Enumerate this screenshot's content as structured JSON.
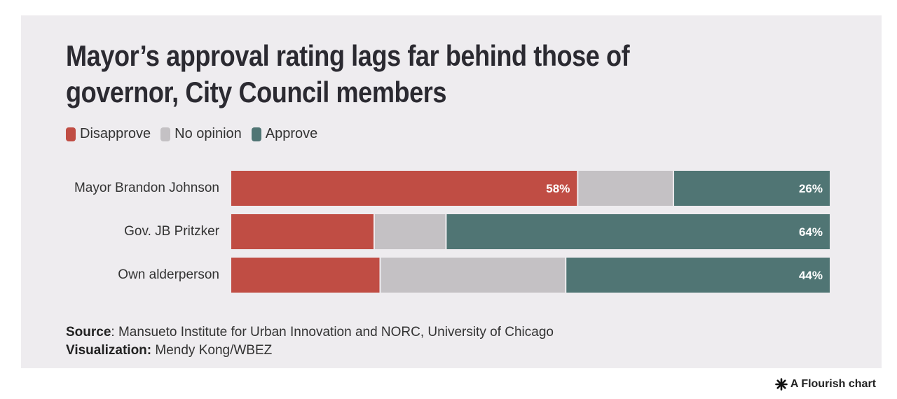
{
  "title": "Mayor’s approval rating lags far behind those of governor, City Council members",
  "legend": [
    {
      "label": "Disapprove",
      "color": "#c04d44"
    },
    {
      "label": "No opinion",
      "color": "#c4c1c4"
    },
    {
      "label": "Approve",
      "color": "#507574"
    }
  ],
  "chart_data": {
    "type": "bar",
    "orientation": "horizontal",
    "stacked": true,
    "title": "Mayor’s approval rating lags far behind those of governor, City Council members",
    "categories": [
      "Mayor Brandon Johnson",
      "Gov. JB Pritzker",
      "Own alderperson"
    ],
    "series": [
      {
        "name": "Disapprove",
        "color": "#c04d44",
        "values": [
          58,
          24,
          25
        ],
        "labels": [
          "58%",
          "",
          ""
        ]
      },
      {
        "name": "No opinion",
        "color": "#c4c1c4",
        "values": [
          16,
          12,
          31
        ],
        "labels": [
          "",
          "",
          ""
        ]
      },
      {
        "name": "Approve",
        "color": "#507574",
        "values": [
          26,
          64,
          44
        ],
        "labels": [
          "26%",
          "64%",
          "44%"
        ]
      }
    ],
    "xlim": [
      0,
      100
    ],
    "legend_position": "top-left",
    "grid": false
  },
  "footer": {
    "source_label": "Source",
    "source_text": ": Mansueto Institute for Urban Innovation and NORC, University of Chicago",
    "viz_label": "Visualization:",
    "viz_text": " Mendy Kong/WBEZ"
  },
  "credit": {
    "icon": "flourish-star-icon",
    "text": "A Flourish chart"
  }
}
